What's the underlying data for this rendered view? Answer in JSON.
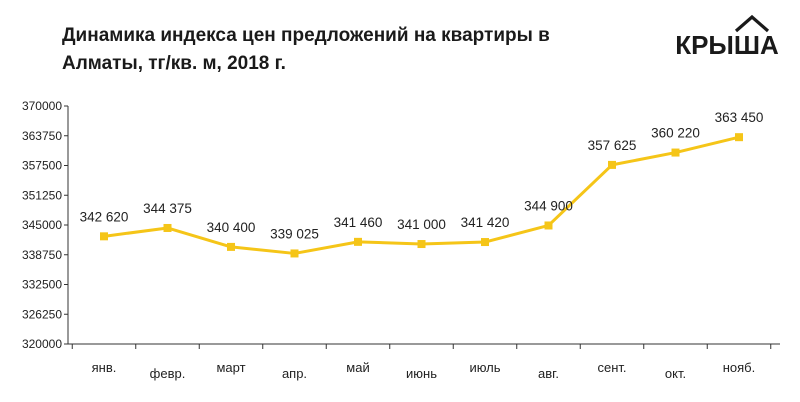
{
  "chart_data": {
    "type": "line",
    "title": "Динамика индекса цен предложений на квартиры в Алматы, тг/кв. м, 2018 г.",
    "categories": [
      "янв.",
      "февр.",
      "март",
      "апр.",
      "май",
      "июнь",
      "июль",
      "авг.",
      "сент.",
      "окт.",
      "нояб."
    ],
    "values": [
      342620,
      344375,
      340400,
      339025,
      341460,
      341000,
      341420,
      344900,
      357625,
      360220,
      363450
    ],
    "value_labels": [
      "342 620",
      "344 375",
      "340 400",
      "339 025",
      "341 460",
      "341 000",
      "341 420",
      "344 900",
      "357 625",
      "360 220",
      "363 450"
    ],
    "y_ticks": [
      320000,
      326250,
      332500,
      338750,
      345000,
      351250,
      357500,
      363750,
      370000
    ],
    "ylim": [
      320000,
      370000
    ],
    "xlabel": "",
    "ylabel": "",
    "grid": false,
    "line_color": "#f5c518",
    "marker": "square"
  },
  "logo": {
    "text": "КРЫША",
    "color": "#1a1a1a"
  }
}
